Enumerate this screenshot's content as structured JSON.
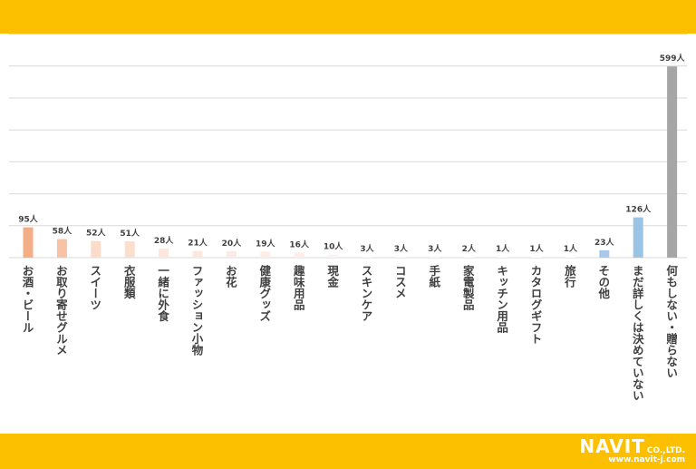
{
  "chart_data": {
    "type": "bar",
    "categories": [
      "お酒・ビール",
      "お取り寄せグルメ",
      "スイーツ",
      "衣服類",
      "一緒に外食",
      "ファッション小物",
      "お花",
      "健康グッズ",
      "趣味用品",
      "現金",
      "スキンケア",
      "コスメ",
      "手紙",
      "家電製品",
      "キッチン用品",
      "カタログギフト",
      "旅行",
      "その他",
      "まだ詳しくは決めていない",
      "何もしない・贈らない"
    ],
    "values": [
      95,
      58,
      52,
      51,
      28,
      21,
      20,
      19,
      16,
      10,
      3,
      3,
      3,
      2,
      1,
      1,
      1,
      23,
      126,
      599
    ],
    "value_labels": [
      "95人",
      "58人",
      "52人",
      "51人",
      "28人",
      "21人",
      "20人",
      "19人",
      "16人",
      "10人",
      "3人",
      "3人",
      "3人",
      "2人",
      "1人",
      "1人",
      "1人",
      "23人",
      "126人",
      "599人"
    ],
    "colors": [
      "#F4AE85",
      "#F7C3A4",
      "#FADCCB",
      "#FADFCF",
      "#FBE7DB",
      "#FCE9DE",
      "#FCEBE2",
      "#FCEDE5",
      "#FCEFE8",
      "#FDF3EE",
      "#FEF8F4",
      "#FEF8F4",
      "#FEF8F4",
      "#FEF9F6",
      "#FEFBF9",
      "#FEFBF9",
      "#FEFBF9",
      "#A9C9EA",
      "#9AC3E6",
      "#A6A6A6"
    ],
    "ylim": [
      0,
      700
    ],
    "grid": true,
    "title": "",
    "xlabel": "",
    "ylabel": ""
  },
  "brand": {
    "logo": "NAVIT",
    "company_suffix": "CO.,LTD.",
    "url": "www.navit-j.com",
    "color": "#FFFFFF"
  },
  "theme": {
    "band_color": "#FDC000",
    "grid_color": "#D9D9D9",
    "text_color": "#404040"
  }
}
